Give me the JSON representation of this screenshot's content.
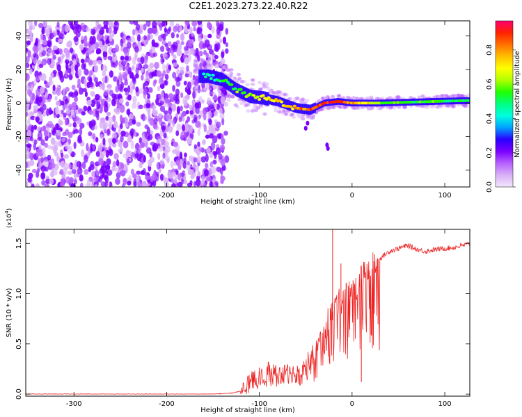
{
  "title": "C2E1.2023.273.22.40.R22",
  "chart_data": [
    {
      "type": "heatmap",
      "xlabel": "Height of straight line (km)",
      "ylabel": "Frequency (Hz)",
      "xlim": [
        -352,
        127
      ],
      "ylim": [
        -50,
        49
      ],
      "xticks": [
        -300,
        -200,
        -100,
        0,
        100
      ],
      "yticks": [
        -40,
        -20,
        0,
        20,
        40
      ],
      "colorbar": {
        "label": "Normalized spectral amplitude",
        "range": [
          0,
          0.97
        ],
        "ticks": [
          0.0,
          0.2,
          0.4,
          0.6,
          0.8
        ],
        "colors": [
          "#f2e8fc",
          "#d9b0f7",
          "#b760ff",
          "#7a00ff",
          "#2a00ff",
          "#00a0ff",
          "#00ffe0",
          "#00ff80",
          "#20ff00",
          "#b0ff00",
          "#ffff00",
          "#ffc000",
          "#ff7000",
          "#ff2000",
          "#ff0070"
        ]
      },
      "ridge": {
        "x": [
          -155,
          -140,
          -125,
          -110,
          -95,
          -80,
          -60,
          -45,
          -30,
          -15,
          0,
          30,
          60,
          90,
          127
        ],
        "frequency": [
          16,
          14,
          8,
          4,
          3,
          1,
          -3,
          -4,
          0,
          1,
          0,
          0,
          0.5,
          1,
          1.5
        ],
        "amplitude": [
          0.45,
          0.5,
          0.55,
          0.62,
          0.7,
          0.72,
          0.78,
          0.85,
          0.9,
          0.88,
          0.8,
          0.6,
          0.55,
          0.55,
          0.5
        ]
      },
      "noise_region": {
        "x": [
          -352,
          -135
        ]
      }
    },
    {
      "type": "line",
      "xlabel": "Height of straight line (km)",
      "ylabel": "SNR (10 * v/v)",
      "multiplier": "(x10",
      "multiplier_exp": "4",
      "multiplier_close": ")",
      "xlim": [
        -352,
        127
      ],
      "ylim": [
        -0.02,
        1.64
      ],
      "xticks": [
        -300,
        -200,
        -100,
        0,
        100
      ],
      "yticks": [
        0.0,
        0.5,
        1.0,
        1.5
      ],
      "series": [
        {
          "color": "#ee2222",
          "x": [
            -352,
            -250,
            -150,
            -130,
            -120,
            -115,
            -110,
            -100,
            -90,
            -80,
            -70,
            -60,
            -50,
            -45,
            -40,
            -35,
            -30,
            -25,
            -22,
            -20,
            -15,
            -10,
            -5,
            0,
            5,
            10,
            15,
            20,
            25,
            30,
            40,
            50,
            60,
            70,
            80,
            90,
            100,
            110,
            120,
            127
          ],
          "y": [
            0.0,
            0.0,
            0.0,
            0.01,
            0.03,
            0.06,
            0.12,
            0.18,
            0.22,
            0.2,
            0.2,
            0.22,
            0.28,
            0.35,
            0.42,
            0.5,
            0.62,
            0.76,
            0.8,
            0.85,
            0.9,
            0.95,
            1.0,
            1.08,
            1.05,
            1.15,
            1.22,
            1.25,
            1.3,
            1.35,
            1.42,
            1.45,
            1.48,
            1.44,
            1.42,
            1.44,
            1.45,
            1.46,
            1.48,
            1.5
          ]
        }
      ],
      "spikes": [
        {
          "x": -21,
          "y": 1.64
        },
        {
          "x": 10,
          "y": 0.12
        },
        {
          "x": -12,
          "y": 1.3
        }
      ]
    }
  ]
}
